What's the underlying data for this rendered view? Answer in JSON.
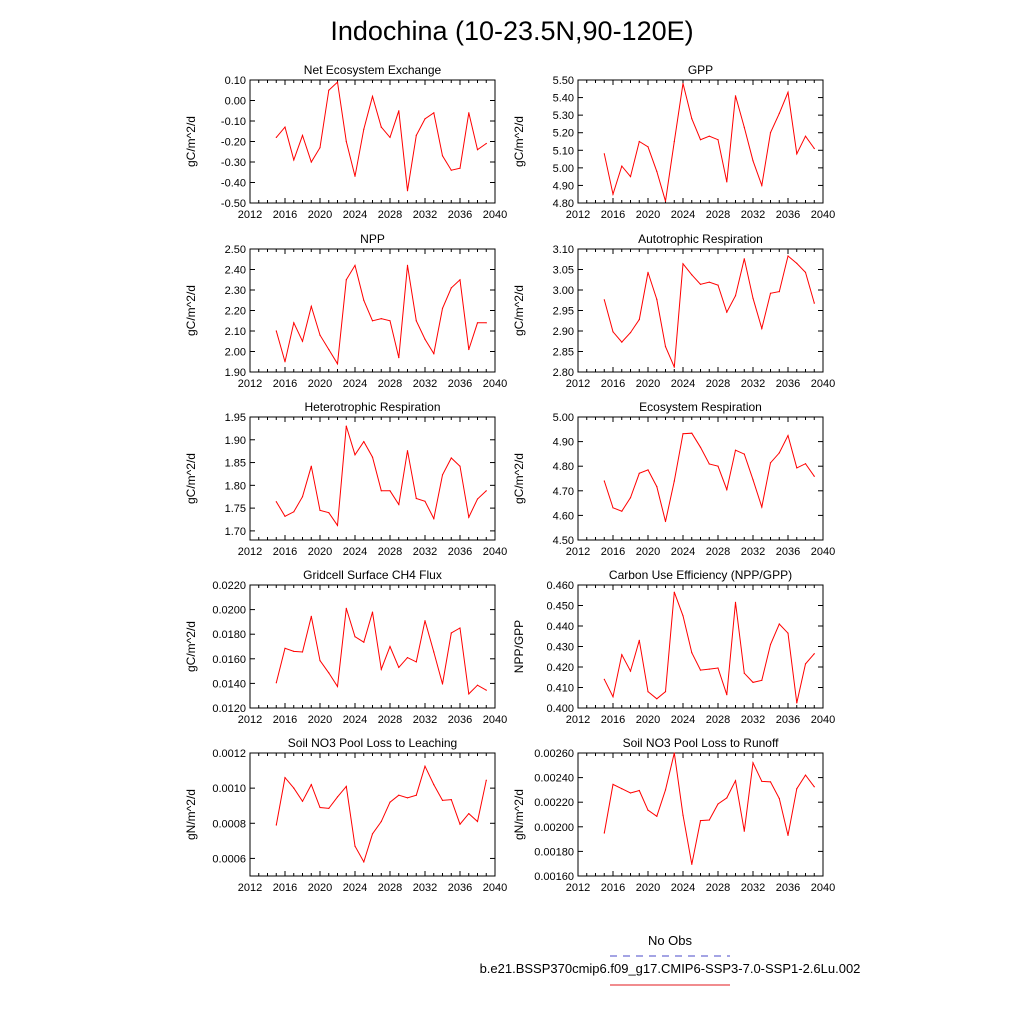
{
  "figure": {
    "title": "Indochina (10-23.5N,90-120E)",
    "legend": [
      {
        "label": "No Obs",
        "color": "#4a4ac8",
        "style": "dashed"
      },
      {
        "label": "b.e21.BSSP370cmip6.f09_g17.CMIP6-SSP3-7.0-SSP1-2.6Lu.002",
        "color": "#e31a1c",
        "style": "solid"
      }
    ],
    "line_color": "#ff0000"
  },
  "chart_data": [
    {
      "type": "line",
      "title": "Net Ecosystem Exchange",
      "ylabel": "gC/m^2/d",
      "xlim": [
        2012,
        2040
      ],
      "ylim": [
        -0.5,
        0.1
      ],
      "x_ticks": [
        "2012",
        "2016",
        "2020",
        "2024",
        "2028",
        "2032",
        "2036",
        "2040"
      ],
      "y_ticks": [
        "-0.50",
        "-0.40",
        "-0.30",
        "-0.20",
        "-0.10",
        "0.00",
        "0.10"
      ],
      "x": [
        2015,
        2016,
        2017,
        2018,
        2019,
        2020,
        2021,
        2022,
        2023,
        2024,
        2025,
        2026,
        2027,
        2028,
        2029,
        2030,
        2031,
        2032,
        2033,
        2034,
        2035,
        2036,
        2037,
        2038,
        2039
      ],
      "values": [
        -0.18,
        -0.13,
        -0.29,
        -0.17,
        -0.3,
        -0.23,
        0.05,
        0.09,
        -0.2,
        -0.37,
        -0.14,
        0.02,
        -0.13,
        -0.18,
        -0.05,
        -0.44,
        -0.17,
        -0.09,
        -0.06,
        -0.27,
        -0.34,
        -0.33,
        -0.06,
        -0.24,
        -0.21
      ]
    },
    {
      "type": "line",
      "title": "GPP",
      "ylabel": "gC/m^2/d",
      "xlim": [
        2012,
        2040
      ],
      "ylim": [
        4.8,
        5.5
      ],
      "x_ticks": [
        "2012",
        "2016",
        "2020",
        "2024",
        "2028",
        "2032",
        "2036",
        "2040"
      ],
      "y_ticks": [
        "4.80",
        "4.90",
        "5.00",
        "5.10",
        "5.20",
        "5.30",
        "5.40",
        "5.50"
      ],
      "x": [
        2015,
        2016,
        2017,
        2018,
        2019,
        2020,
        2021,
        2022,
        2023,
        2024,
        2025,
        2026,
        2027,
        2028,
        2029,
        2030,
        2031,
        2032,
        2033,
        2034,
        2035,
        2036,
        2037,
        2038,
        2039
      ],
      "values": [
        5.08,
        4.85,
        5.01,
        4.95,
        5.15,
        5.12,
        4.98,
        4.81,
        5.15,
        5.48,
        5.28,
        5.16,
        5.18,
        5.16,
        4.92,
        5.41,
        5.23,
        5.04,
        4.9,
        5.2,
        5.31,
        5.43,
        5.08,
        5.18,
        5.11
      ]
    },
    {
      "type": "line",
      "title": "NPP",
      "ylabel": "gC/m^2/d",
      "xlim": [
        2012,
        2040
      ],
      "ylim": [
        1.9,
        2.5
      ],
      "x_ticks": [
        "2012",
        "2016",
        "2020",
        "2024",
        "2028",
        "2032",
        "2036",
        "2040"
      ],
      "y_ticks": [
        "1.90",
        "2.00",
        "2.10",
        "2.20",
        "2.30",
        "2.40",
        "2.50"
      ],
      "x": [
        2015,
        2016,
        2017,
        2018,
        2019,
        2020,
        2021,
        2022,
        2023,
        2024,
        2025,
        2026,
        2027,
        2028,
        2029,
        2030,
        2031,
        2032,
        2033,
        2034,
        2035,
        2036,
        2037,
        2038,
        2039
      ],
      "values": [
        2.1,
        1.95,
        2.14,
        2.05,
        2.22,
        2.08,
        2.01,
        1.94,
        2.35,
        2.42,
        2.25,
        2.15,
        2.16,
        2.15,
        1.97,
        2.42,
        2.15,
        2.06,
        1.99,
        2.21,
        2.31,
        2.35,
        2.01,
        2.14,
        2.14
      ]
    },
    {
      "type": "line",
      "title": "Autotrophic Respiration",
      "ylabel": "gC/m^2/d",
      "xlim": [
        2012,
        2040
      ],
      "ylim": [
        2.8,
        3.1
      ],
      "x_ticks": [
        "2012",
        "2016",
        "2020",
        "2024",
        "2028",
        "2032",
        "2036",
        "2040"
      ],
      "y_ticks": [
        "2.80",
        "2.85",
        "2.90",
        "2.95",
        "3.00",
        "3.05",
        "3.10"
      ],
      "x": [
        2015,
        2016,
        2017,
        2018,
        2019,
        2020,
        2021,
        2022,
        2023,
        2024,
        2025,
        2026,
        2027,
        2028,
        2029,
        2030,
        2031,
        2032,
        2033,
        2034,
        2035,
        2036,
        2037,
        2038,
        2039
      ],
      "values": [
        2.976,
        2.898,
        2.873,
        2.896,
        2.928,
        3.043,
        2.977,
        2.862,
        2.812,
        3.064,
        3.037,
        3.014,
        3.019,
        3.012,
        2.946,
        2.986,
        3.076,
        2.98,
        2.906,
        2.992,
        2.996,
        3.083,
        3.065,
        3.043,
        2.968
      ]
    },
    {
      "type": "line",
      "title": "Heterotrophic Respiration",
      "ylabel": "gC/m^2/d",
      "xlim": [
        2012,
        2040
      ],
      "ylim": [
        1.68,
        1.95
      ],
      "x_ticks": [
        "2012",
        "2016",
        "2020",
        "2024",
        "2028",
        "2032",
        "2036",
        "2040"
      ],
      "y_ticks": [
        "1.70",
        "1.75",
        "1.80",
        "1.85",
        "1.90",
        "1.95"
      ],
      "x": [
        2015,
        2016,
        2017,
        2018,
        2019,
        2020,
        2021,
        2022,
        2023,
        2024,
        2025,
        2026,
        2027,
        2028,
        2029,
        2030,
        2031,
        2032,
        2033,
        2034,
        2035,
        2036,
        2037,
        2038,
        2039
      ],
      "values": [
        1.764,
        1.732,
        1.742,
        1.775,
        1.842,
        1.745,
        1.74,
        1.712,
        1.93,
        1.867,
        1.896,
        1.862,
        1.788,
        1.788,
        1.758,
        1.876,
        1.771,
        1.765,
        1.727,
        1.823,
        1.86,
        1.842,
        1.73,
        1.77,
        1.788
      ]
    },
    {
      "type": "line",
      "title": "Ecosystem Respiration",
      "ylabel": "gC/m^2/d",
      "xlim": [
        2012,
        2040
      ],
      "ylim": [
        4.5,
        5.0
      ],
      "x_ticks": [
        "2012",
        "2016",
        "2020",
        "2024",
        "2028",
        "2032",
        "2036",
        "2040"
      ],
      "y_ticks": [
        "4.50",
        "4.60",
        "4.70",
        "4.80",
        "4.90",
        "5.00"
      ],
      "x": [
        2015,
        2016,
        2017,
        2018,
        2019,
        2020,
        2021,
        2022,
        2023,
        2024,
        2025,
        2026,
        2027,
        2028,
        2029,
        2030,
        2031,
        2032,
        2033,
        2034,
        2035,
        2036,
        2037,
        2038,
        2039
      ],
      "values": [
        4.74,
        4.631,
        4.617,
        4.672,
        4.771,
        4.785,
        4.717,
        4.575,
        4.74,
        4.932,
        4.934,
        4.877,
        4.809,
        4.8,
        4.705,
        4.865,
        4.849,
        4.745,
        4.634,
        4.814,
        4.854,
        4.925,
        4.793,
        4.81,
        4.759
      ]
    },
    {
      "type": "line",
      "title": "Gridcell Surface CH4 Flux",
      "ylabel": "gC/m^2/d",
      "xlim": [
        2012,
        2040
      ],
      "ylim": [
        0.012,
        0.022
      ],
      "x_ticks": [
        "2012",
        "2016",
        "2020",
        "2024",
        "2028",
        "2032",
        "2036",
        "2040"
      ],
      "y_ticks": [
        "0.0120",
        "0.0140",
        "0.0160",
        "0.0180",
        "0.0200",
        "0.0220"
      ],
      "x": [
        2015,
        2016,
        2017,
        2018,
        2019,
        2020,
        2021,
        2022,
        2023,
        2024,
        2025,
        2026,
        2027,
        2028,
        2029,
        2030,
        2031,
        2032,
        2033,
        2034,
        2035,
        2036,
        2037,
        2038,
        2039
      ],
      "values": [
        0.01405,
        0.01685,
        0.0166,
        0.01655,
        0.01945,
        0.01585,
        0.01485,
        0.01375,
        0.0201,
        0.0178,
        0.01735,
        0.0198,
        0.01515,
        0.017,
        0.0153,
        0.0161,
        0.01575,
        0.0191,
        0.01655,
        0.01395,
        0.0181,
        0.0185,
        0.01315,
        0.01385,
        0.01345
      ]
    },
    {
      "type": "line",
      "title": "Carbon Use Efficiency (NPP/GPP)",
      "ylabel": "NPP/GPP",
      "xlim": [
        2012,
        2040
      ],
      "ylim": [
        0.4,
        0.46
      ],
      "x_ticks": [
        "2012",
        "2016",
        "2020",
        "2024",
        "2028",
        "2032",
        "2036",
        "2040"
      ],
      "y_ticks": [
        "0.400",
        "0.410",
        "0.420",
        "0.430",
        "0.440",
        "0.450",
        "0.460"
      ],
      "x": [
        2015,
        2016,
        2017,
        2018,
        2019,
        2020,
        2021,
        2022,
        2023,
        2024,
        2025,
        2026,
        2027,
        2028,
        2029,
        2030,
        2031,
        2032,
        2033,
        2034,
        2035,
        2036,
        2037,
        2038,
        2039
      ],
      "values": [
        0.414,
        0.4055,
        0.426,
        0.418,
        0.433,
        0.408,
        0.4045,
        0.408,
        0.4565,
        0.445,
        0.427,
        0.4185,
        0.419,
        0.4195,
        0.4065,
        0.4515,
        0.417,
        0.4125,
        0.4135,
        0.431,
        0.441,
        0.4365,
        0.4025,
        0.4215,
        0.4265
      ]
    },
    {
      "type": "line",
      "title": "Soil NO3 Pool Loss to Leaching",
      "ylabel": "gN/m^2/d",
      "xlim": [
        2012,
        2040
      ],
      "ylim": [
        0.0005,
        0.0012
      ],
      "x_ticks": [
        "2012",
        "2016",
        "2020",
        "2024",
        "2028",
        "2032",
        "2036",
        "2040"
      ],
      "y_ticks": [
        "0.0006",
        "0.0008",
        "0.0010",
        "0.0012"
      ],
      "x": [
        2015,
        2016,
        2017,
        2018,
        2019,
        2020,
        2021,
        2022,
        2023,
        2024,
        2025,
        2026,
        2027,
        2028,
        2029,
        2030,
        2031,
        2032,
        2033,
        2034,
        2035,
        2036,
        2037,
        2038,
        2039
      ],
      "values": [
        0.00079,
        0.00106,
        0.001,
        0.000925,
        0.00102,
        0.00089,
        0.000885,
        0.00095,
        0.00101,
        0.00067,
        0.00058,
        0.00074,
        0.00081,
        0.00092,
        0.00096,
        0.000945,
        0.00096,
        0.001125,
        0.00102,
        0.00093,
        0.000935,
        0.000795,
        0.000855,
        0.00081,
        0.001045
      ]
    },
    {
      "type": "line",
      "title": "Soil NO3 Pool Loss to Runoff",
      "ylabel": "gN/m^2/d",
      "xlim": [
        2012,
        2040
      ],
      "ylim": [
        0.0016,
        0.0026
      ],
      "x_ticks": [
        "2012",
        "2016",
        "2020",
        "2024",
        "2028",
        "2032",
        "2036",
        "2040"
      ],
      "y_ticks": [
        "0.00160",
        "0.00180",
        "0.00200",
        "0.00220",
        "0.00240",
        "0.00260"
      ],
      "x": [
        2015,
        2016,
        2017,
        2018,
        2019,
        2020,
        2021,
        2022,
        2023,
        2024,
        2025,
        2026,
        2027,
        2028,
        2029,
        2030,
        2031,
        2032,
        2033,
        2034,
        2035,
        2036,
        2037,
        2038,
        2039
      ],
      "values": [
        0.00195,
        0.002345,
        0.00231,
        0.002275,
        0.002295,
        0.002135,
        0.002085,
        0.0023,
        0.0026,
        0.002095,
        0.001695,
        0.00205,
        0.002055,
        0.002185,
        0.002235,
        0.002375,
        0.001965,
        0.00252,
        0.00237,
        0.002365,
        0.00223,
        0.00193,
        0.00231,
        0.00242,
        0.002325
      ]
    }
  ]
}
